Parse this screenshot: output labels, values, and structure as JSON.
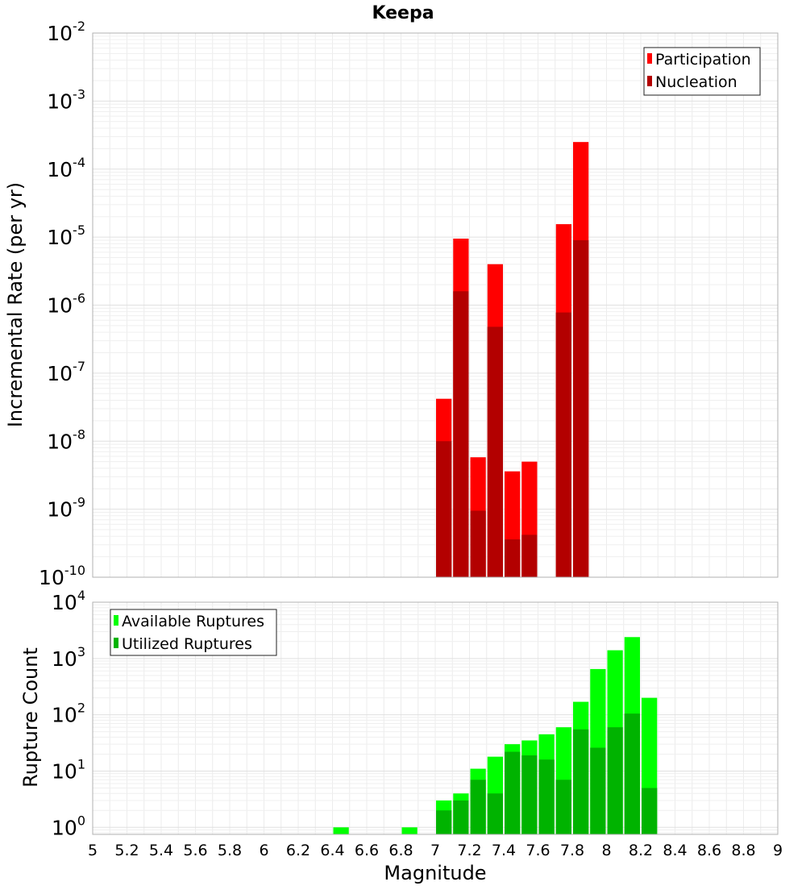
{
  "chart_data": [
    {
      "type": "bar",
      "title": "Keepa",
      "xlabel": "",
      "ylabel": "Incremental Rate (per yr)",
      "xlim": [
        5,
        9
      ],
      "ylim": [
        1e-10,
        0.01
      ],
      "yscale": "log",
      "y_tick_exponents": [
        -10,
        -9,
        -8,
        -7,
        -6,
        -5,
        -4,
        -3,
        -2
      ],
      "grid": true,
      "legend_position": "top-right",
      "bin_width": 0.1,
      "x": [
        7.05,
        7.15,
        7.25,
        7.35,
        7.45,
        7.55,
        7.75,
        7.85
      ],
      "series": [
        {
          "name": "Participation",
          "color": "#ff0000",
          "values": [
            4.2e-08,
            9.5e-06,
            5.8e-09,
            4e-06,
            3.6e-09,
            5e-09,
            1.55e-05,
            0.00025
          ]
        },
        {
          "name": "Nucleation",
          "color": "#b30000",
          "values": [
            1e-08,
            1.6e-06,
            9.5e-10,
            4.8e-07,
            3.6e-10,
            4.2e-10,
            7.8e-07,
            9e-06
          ]
        }
      ]
    },
    {
      "type": "bar",
      "title": "",
      "xlabel": "Magnitude",
      "ylabel": "Rupture Count",
      "xlim": [
        5,
        9
      ],
      "ylim": [
        0.75,
        10000
      ],
      "yscale": "log",
      "y_tick_exponents": [
        0,
        1,
        2,
        3,
        4
      ],
      "x_ticks": [
        "5",
        "5.2",
        "5.4",
        "5.6",
        "5.8",
        "6",
        "6.2",
        "6.4",
        "6.6",
        "6.8",
        "7",
        "7.2",
        "7.4",
        "7.6",
        "7.8",
        "8",
        "8.2",
        "8.4",
        "8.6",
        "8.8",
        "9"
      ],
      "grid": true,
      "legend_position": "top-left",
      "bin_width": 0.1,
      "x": [
        6.45,
        6.85,
        7.05,
        7.15,
        7.25,
        7.35,
        7.45,
        7.55,
        7.65,
        7.75,
        7.85,
        7.95,
        8.05,
        8.15,
        8.25
      ],
      "series": [
        {
          "name": "Available Ruptures",
          "color": "#00ff00",
          "values": [
            1,
            1,
            3,
            4,
            11,
            18,
            30,
            35,
            45,
            60,
            170,
            650,
            1400,
            2400,
            200
          ]
        },
        {
          "name": "Utilized Ruptures",
          "color": "#00b300",
          "values": [
            0,
            0,
            2,
            3,
            7,
            4,
            22,
            19,
            16,
            7,
            55,
            26,
            60,
            105,
            5
          ]
        }
      ]
    }
  ]
}
